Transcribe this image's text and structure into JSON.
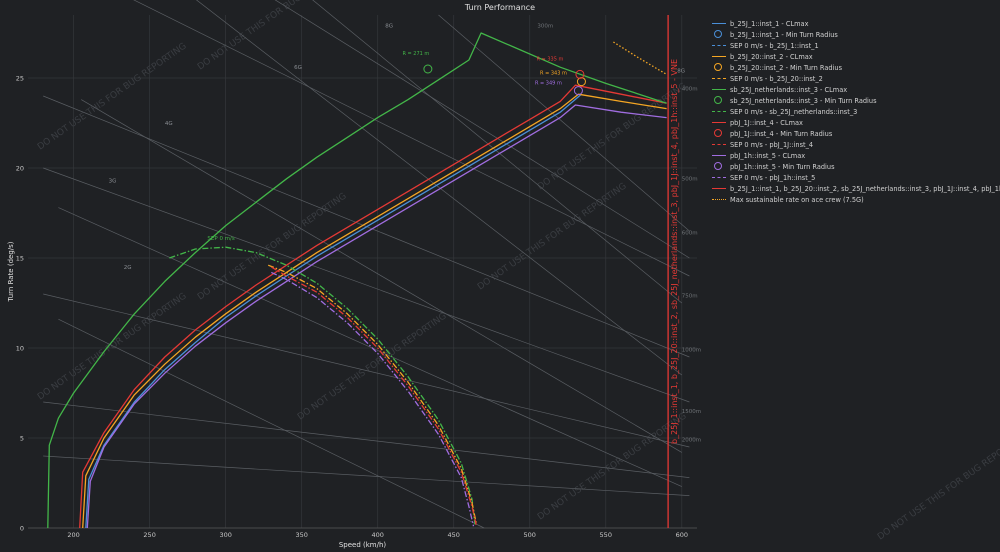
{
  "title": "Turn Performance",
  "watermark": "DO NOT USE THIS FOR BUG REPORTING",
  "chart_data": {
    "type": "line",
    "title": "Turn Performance",
    "xlabel": "Speed (km/h)",
    "ylabel": "Turn Rate (deg/s)",
    "xlim": [
      170,
      610
    ],
    "ylim": [
      0,
      28.5
    ],
    "x_ticks": [
      200,
      250,
      300,
      350,
      400,
      450,
      500,
      550,
      600
    ],
    "y_ticks": [
      0,
      5,
      10,
      15,
      20,
      25
    ],
    "grid": true,
    "legend_position": "right",
    "series": [
      {
        "name": "b_25J_1::inst_1 - CLmax",
        "color": "#4a8fd8",
        "style": "solid",
        "x": [
          208,
          210,
          220,
          240,
          260,
          280,
          300,
          320,
          340,
          360,
          380,
          400,
          420,
          440,
          460,
          480,
          500,
          520,
          534
        ],
        "y": [
          0,
          2.7,
          4.6,
          7.0,
          8.8,
          10.3,
          11.7,
          12.9,
          14.0,
          15.1,
          16.1,
          17.1,
          18.1,
          19.1,
          20.1,
          21.1,
          22.1,
          23.1,
          24.1
        ]
      },
      {
        "name": "b_25J_20::inst_2 - CLmax",
        "color": "#f5a623",
        "style": "solid",
        "x": [
          206,
          208,
          220,
          240,
          260,
          280,
          300,
          320,
          340,
          360,
          380,
          400,
          420,
          440,
          460,
          480,
          500,
          520,
          532,
          560,
          590
        ],
        "y": [
          0,
          2.9,
          5.0,
          7.4,
          9.1,
          10.6,
          11.9,
          13.1,
          14.2,
          15.3,
          16.3,
          17.3,
          18.3,
          19.3,
          20.3,
          21.3,
          22.3,
          23.3,
          24.1,
          23.7,
          23.3
        ]
      },
      {
        "name": "pbJ_1J::inst_4 - CLmax",
        "color": "#e53935",
        "style": "solid",
        "x": [
          204,
          206,
          220,
          240,
          260,
          280,
          300,
          320,
          340,
          360,
          380,
          400,
          420,
          440,
          460,
          480,
          500,
          520,
          530,
          560,
          590
        ],
        "y": [
          0,
          3.1,
          5.3,
          7.7,
          9.5,
          11.0,
          12.3,
          13.5,
          14.6,
          15.7,
          16.7,
          17.7,
          18.7,
          19.7,
          20.7,
          21.7,
          22.7,
          23.7,
          24.6,
          24.1,
          23.6
        ]
      },
      {
        "name": "pbJ_1h::inst_5 - CLmax",
        "color": "#a06de0",
        "style": "solid",
        "x": [
          209,
          211,
          220,
          240,
          260,
          280,
          300,
          320,
          340,
          360,
          380,
          400,
          420,
          440,
          460,
          480,
          500,
          520,
          530,
          560,
          590
        ],
        "y": [
          0,
          2.6,
          4.5,
          6.9,
          8.6,
          10.1,
          11.4,
          12.6,
          13.7,
          14.8,
          15.8,
          16.8,
          17.8,
          18.8,
          19.8,
          20.8,
          21.8,
          22.8,
          23.5,
          23.1,
          22.8
        ]
      },
      {
        "name": "sb_25J_netherlands::inst_3 - CLmax",
        "color": "#43b649",
        "style": "solid",
        "x": [
          183,
          184,
          190,
          200,
          220,
          240,
          260,
          280,
          300,
          320,
          340,
          360,
          380,
          400,
          420,
          440,
          460,
          468,
          490,
          520,
          550,
          590
        ],
        "y": [
          0,
          4.6,
          6.1,
          7.5,
          9.8,
          11.9,
          13.7,
          15.3,
          16.8,
          18.1,
          19.4,
          20.6,
          21.7,
          22.8,
          23.8,
          24.9,
          26.0,
          27.5,
          26.7,
          25.6,
          24.7,
          23.6
        ]
      },
      {
        "name": "SEP 0 m/s - sb_25J_netherlands::inst_3",
        "color": "#43b649",
        "style": "dashdot",
        "x": [
          263,
          280,
          300,
          320,
          340,
          360,
          380,
          400,
          420,
          440,
          455,
          462,
          464
        ],
        "y": [
          15.0,
          15.5,
          15.6,
          15.3,
          14.6,
          13.6,
          12.2,
          10.5,
          8.4,
          6.0,
          3.6,
          1.6,
          0.2
        ]
      },
      {
        "name": "SEP 0 m/s - b_25J_20::inst_2",
        "color": "#f5a623",
        "style": "dashdot",
        "x": [
          328,
          340,
          360,
          380,
          400,
          420,
          440,
          455,
          462,
          465
        ],
        "y": [
          14.6,
          14.2,
          13.3,
          11.9,
          10.2,
          8.1,
          5.7,
          3.3,
          1.4,
          0.2
        ]
      },
      {
        "name": "SEP 0 m/s - pbJ_1J::inst_4",
        "color": "#e53935",
        "style": "dashdot",
        "x": [
          330,
          340,
          360,
          380,
          400,
          420,
          440,
          455,
          462,
          465
        ],
        "y": [
          14.5,
          14.0,
          13.1,
          11.7,
          10.0,
          7.9,
          5.5,
          3.1,
          1.2,
          0.1
        ]
      },
      {
        "name": "SEP 0 m/s - pbJ_1h::inst_5",
        "color": "#a06de0",
        "style": "dashdot",
        "x": [
          330,
          340,
          360,
          380,
          400,
          420,
          440,
          455,
          460,
          463
        ],
        "y": [
          14.2,
          13.8,
          12.8,
          11.4,
          9.7,
          7.6,
          5.2,
          2.8,
          1.2,
          0.1
        ]
      },
      {
        "name": "Max sustainable rate on ace crew (7.5G)",
        "color": "#f5a623",
        "style": "dotted",
        "x": [
          555,
          570,
          590
        ],
        "y": [
          27.0,
          26.2,
          25.2
        ]
      }
    ],
    "min_turn_radius_markers": [
      {
        "series": "sb_25J_netherlands::inst_3",
        "x": 433,
        "y": 25.5,
        "label": "R = 271 m",
        "color": "#43b649"
      },
      {
        "series": "b_25J_20::inst_2",
        "x": 534,
        "y": 24.8,
        "label": "R = 343 m",
        "color": "#f5a623"
      },
      {
        "series": "pbJ_1h::inst_5",
        "x": 532,
        "y": 24.3,
        "label": "R = 349 m",
        "color": "#a06de0"
      },
      {
        "series": "pbJ_1J::inst_4",
        "x": 533,
        "y": 25.2,
        "label": "R = 335 m",
        "color": "#e53935"
      }
    ],
    "vne": {
      "x": 591,
      "color": "#e53935",
      "label": "b_25J_1::inst_1, b_25J_20::inst_2, sb_25J_netherlands::inst_3, pbJ_1J::inst_4, pbJ_1h::inst_5 - VNE"
    },
    "sep_label": {
      "text": "SEP 0 m/s",
      "x": 297,
      "y": 16.0
    },
    "g_lines": [
      {
        "label": "2G",
        "x0": 190,
        "y0": 11.6,
        "x1": 470,
        "y1": 0.0
      },
      {
        "label": "3G",
        "x0": 190,
        "y0": 17.8,
        "x1": 600,
        "y1": 2.3
      },
      {
        "label": "4G",
        "x0": 205,
        "y0": 23.8,
        "x1": 600,
        "y1": 4.2
      },
      {
        "label": "6G",
        "x0": 240,
        "y0": 32.0,
        "x1": 600,
        "y1": 8.5
      },
      {
        "label": "8G",
        "x0": 290,
        "y0": 34.0,
        "x1": 600,
        "y1": 12.5
      }
    ],
    "g_line_labels": [
      {
        "text": "2G",
        "x": 233,
        "y": 14.4
      },
      {
        "text": "3G",
        "x": 223,
        "y": 19.2
      },
      {
        "text": "4G",
        "x": 260,
        "y": 22.4
      },
      {
        "text": "6G",
        "x": 345,
        "y": 25.5
      },
      {
        "text": "8G",
        "x": 405,
        "y": 27.8
      },
      {
        "text": "8G",
        "x": 597,
        "y": 25.3
      }
    ],
    "radius_lines": [
      {
        "label": "300m",
        "x0": 440,
        "y0": 28.5,
        "x1": 605,
        "y1": 16.5
      },
      {
        "label": "400m",
        "x0": 320,
        "y0": 30.0,
        "x1": 605,
        "y1": 15.0
      },
      {
        "label": "500m",
        "x0": 200,
        "y0": 31.0,
        "x1": 605,
        "y1": 14.0
      },
      {
        "label": "600m",
        "x0": 180,
        "y0": 24.0,
        "x1": 605,
        "y1": 9.5
      },
      {
        "label": "750m",
        "x0": 180,
        "y0": 20.0,
        "x1": 605,
        "y1": 7.0
      },
      {
        "label": "1000m",
        "x0": 180,
        "y0": 13.0,
        "x1": 605,
        "y1": 4.5
      },
      {
        "label": "1500m",
        "x0": 180,
        "y0": 7.0,
        "x1": 605,
        "y1": 2.8
      },
      {
        "label": "2000m",
        "x0": 180,
        "y0": 4.0,
        "x1": 605,
        "y1": 1.8
      }
    ],
    "radius_labels": [
      {
        "text": "300m",
        "x": 505,
        "y": 27.8
      },
      {
        "text": "400m",
        "x": 600,
        "y": 24.3
      },
      {
        "text": "500m",
        "x": 600,
        "y": 19.3
      },
      {
        "text": "600m",
        "x": 600,
        "y": 16.3
      },
      {
        "text": "750m",
        "x": 600,
        "y": 12.8
      },
      {
        "text": "1000m",
        "x": 600,
        "y": 9.8
      },
      {
        "text": "1500m",
        "x": 600,
        "y": 6.4
      },
      {
        "text": "2000m",
        "x": 600,
        "y": 4.8
      }
    ]
  },
  "legend": [
    {
      "label": "b_25J_1::inst_1 - CLmax",
      "color": "#4a8fd8",
      "kind": "line"
    },
    {
      "label": "b_25J_1::inst_1 - Min Turn Radius",
      "color": "#4a8fd8",
      "kind": "circle"
    },
    {
      "label": "SEP 0 m/s - b_25J_1::inst_1",
      "color": "#4a8fd8",
      "kind": "dash"
    },
    {
      "label": "b_25J_20::inst_2 - CLmax",
      "color": "#f5a623",
      "kind": "line"
    },
    {
      "label": "b_25J_20::inst_2 - Min Turn Radius",
      "color": "#f5a623",
      "kind": "circle"
    },
    {
      "label": "SEP 0 m/s - b_25J_20::inst_2",
      "color": "#f5a623",
      "kind": "dash"
    },
    {
      "label": "sb_25J_netherlands::inst_3 - CLmax",
      "color": "#43b649",
      "kind": "line"
    },
    {
      "label": "sb_25J_netherlands::inst_3 - Min Turn Radius",
      "color": "#43b649",
      "kind": "circle"
    },
    {
      "label": "SEP 0 m/s - sb_25J_netherlands::inst_3",
      "color": "#43b649",
      "kind": "dash"
    },
    {
      "label": "pbJ_1J::inst_4 - CLmax",
      "color": "#e53935",
      "kind": "line"
    },
    {
      "label": "pbJ_1J::inst_4 - Min Turn Radius",
      "color": "#e53935",
      "kind": "circle"
    },
    {
      "label": "SEP 0 m/s - pbJ_1J::inst_4",
      "color": "#e53935",
      "kind": "dash"
    },
    {
      "label": "pbJ_1h::inst_5 - CLmax",
      "color": "#a06de0",
      "kind": "line"
    },
    {
      "label": "pbJ_1h::inst_5 - Min Turn Radius",
      "color": "#a06de0",
      "kind": "circle"
    },
    {
      "label": "SEP 0 m/s - pbJ_1h::inst_5",
      "color": "#a06de0",
      "kind": "dash"
    },
    {
      "label": "b_25J_1::inst_1, b_25J_20::inst_2, sb_25J_netherlands::inst_3, pbJ_1J::inst_4, pbJ_1h::inst_5 - VNE",
      "color": "#e53935",
      "kind": "line"
    },
    {
      "label": "Max sustainable rate on ace crew (7.5G)",
      "color": "#f5a623",
      "kind": "dot"
    }
  ]
}
